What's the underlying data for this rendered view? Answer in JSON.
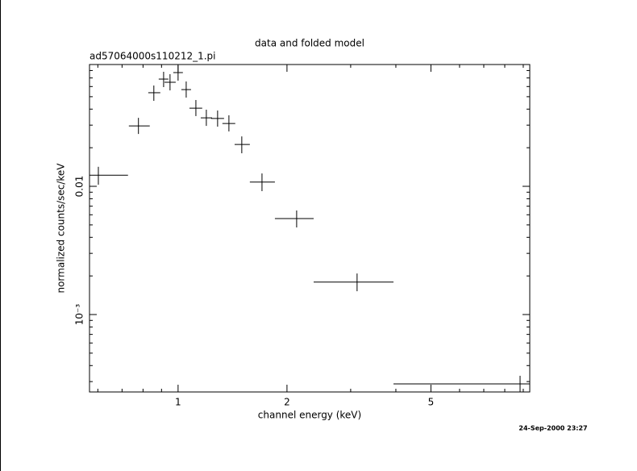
{
  "chart_data": {
    "type": "errorbar",
    "title": "data and folded model",
    "subtitle": "ad57064000s110212_1.pi",
    "xlabel": "channel energy (keV)",
    "ylabel": "normalized counts/sec/keV",
    "timestamp": "24-Sep-2000 23:27",
    "log_x": true,
    "log_y": true,
    "color": "#000000",
    "xlim": [
      0.569,
      9.38
    ],
    "ylim": [
      0.000249,
      0.0891
    ],
    "xticks": [
      1,
      2,
      5
    ],
    "xminorticks": [
      0.6,
      0.7,
      0.8,
      0.9,
      3,
      4,
      6,
      7,
      8,
      9
    ],
    "yticks": [
      0.01,
      {
        "value": 0.001,
        "label": "10⁻³"
      }
    ],
    "yminorticks": [
      0.0003,
      0.0004,
      0.0005,
      0.0006,
      0.0007,
      0.0008,
      0.0009,
      0.002,
      0.003,
      0.004,
      0.005,
      0.006,
      0.007,
      0.008,
      0.009,
      0.02,
      0.03,
      0.04,
      0.05,
      0.06,
      0.07,
      0.08
    ],
    "x": [
      0.602,
      0.777,
      0.857,
      0.912,
      0.95,
      1.0,
      1.053,
      1.12,
      1.197,
      1.286,
      1.382,
      1.5,
      1.706,
      2.127,
      3.125,
      8.82
    ],
    "xmin": [
      0.569,
      0.731,
      0.827,
      0.884,
      0.917,
      0.97,
      1.021,
      1.075,
      1.155,
      1.234,
      1.326,
      1.433,
      1.579,
      1.852,
      2.37,
      3.94
    ],
    "xmax": [
      0.727,
      0.835,
      0.893,
      0.94,
      0.985,
      1.031,
      1.086,
      1.166,
      1.241,
      1.34,
      1.439,
      1.579,
      1.852,
      2.37,
      3.94,
      9.38
    ],
    "values": [
      0.0122,
      0.0296,
      0.0537,
      0.0686,
      0.0648,
      0.0771,
      0.0568,
      0.0407,
      0.0342,
      0.0338,
      0.0309,
      0.0212,
      0.0108,
      0.0056,
      0.00179,
      0.000288
    ],
    "ymin": [
      0.0103,
      0.0256,
      0.0464,
      0.0594,
      0.056,
      0.0667,
      0.0492,
      0.0353,
      0.0296,
      0.0292,
      0.0268,
      0.0181,
      0.00917,
      0.00478,
      0.00152,
      0.000249
    ],
    "ymax": [
      0.0142,
      0.0342,
      0.0611,
      0.0782,
      0.0749,
      0.0878,
      0.0657,
      0.0471,
      0.0396,
      0.039,
      0.0358,
      0.0245,
      0.0126,
      0.00648,
      0.00209,
      0.000333
    ]
  }
}
